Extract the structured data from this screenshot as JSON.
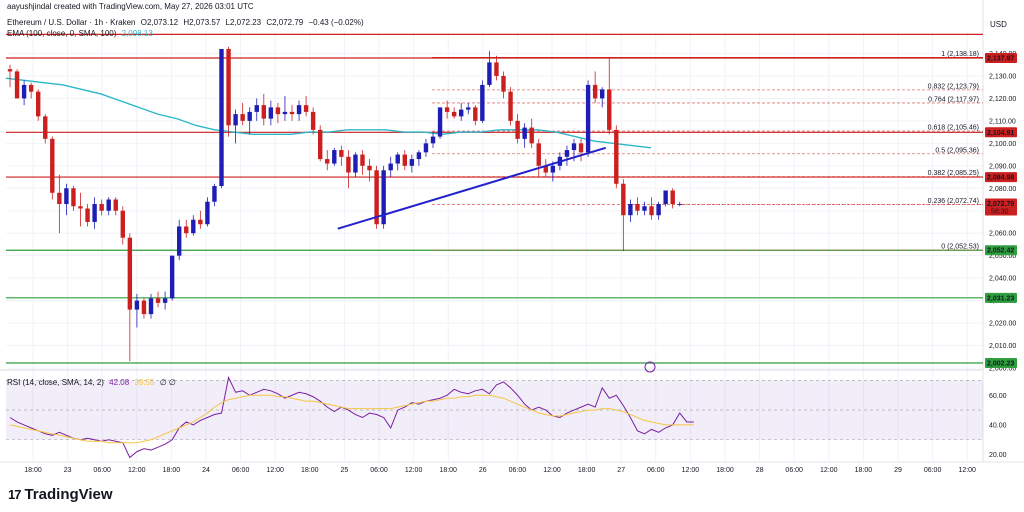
{
  "header": {
    "credit": "aayushjindal created with TradingView.com, May 27, 2026 03:01 UTC",
    "symbol": "Ethereum / U.S. Dollar · 1h · Kraken",
    "o": "O2,073.12",
    "h": "H2,073.57",
    "l": "L2,072.23",
    "c": "C2,072.79",
    "chg": "−0.43 (−0.02%)",
    "ema_label": "EMA (100, close, 0, SMA, 100)",
    "ema_value": "2,098.13",
    "currency": "USD"
  },
  "rsi_header": {
    "label": "RSI (14, close, SMA, 14, 2)",
    "rsi": "42.08",
    "ma": "39.55",
    "extra": "∅ ∅"
  },
  "logo": {
    "text": "TradingView"
  },
  "colors": {
    "up": "#1e1eb4",
    "down": "#cc1f1f",
    "ema": "#2bb7c9",
    "fib": "#d9534f",
    "support": "#2e9e3e",
    "trend": "#2222cc",
    "rsi": "#7b1fa2",
    "rsi_ma": "#f5c542"
  },
  "chart_data": {
    "type": "candlestick",
    "price_range": [
      2000,
      2150
    ],
    "price_ticks": [
      "2,140.00",
      "2,130.00",
      "2,120.00",
      "2,110.00",
      "2,100.00",
      "2,090.00",
      "2,080.00",
      "2,070.00",
      "2,060.00",
      "2,050.00",
      "2,040.00",
      "2,030.00",
      "2,020.00",
      "2,010.00",
      "2,000.00"
    ],
    "time_ticks": [
      "18:00",
      "23",
      "06:00",
      "12:00",
      "18:00",
      "24",
      "06:00",
      "12:00",
      "18:00",
      "25",
      "06:00",
      "12:00",
      "18:00",
      "26",
      "06:00",
      "12:00",
      "18:00",
      "27",
      "06:00",
      "12:00",
      "18:00",
      "28",
      "06:00",
      "12:00",
      "18:00",
      "29",
      "06:00",
      "12:00"
    ],
    "candles": [
      {
        "o": 2133,
        "h": 2135,
        "l": 2125,
        "c": 2132
      },
      {
        "o": 2132,
        "h": 2133,
        "l": 2120,
        "c": 2120
      },
      {
        "o": 2120,
        "h": 2128,
        "l": 2117,
        "c": 2126
      },
      {
        "o": 2126,
        "h": 2127,
        "l": 2120,
        "c": 2123
      },
      {
        "o": 2123,
        "h": 2124,
        "l": 2110,
        "c": 2112
      },
      {
        "o": 2112,
        "h": 2113,
        "l": 2100,
        "c": 2102
      },
      {
        "o": 2102,
        "h": 2103,
        "l": 2075,
        "c": 2078
      },
      {
        "o": 2078,
        "h": 2086,
        "l": 2060,
        "c": 2073
      },
      {
        "o": 2073,
        "h": 2082,
        "l": 2068,
        "c": 2080
      },
      {
        "o": 2080,
        "h": 2081,
        "l": 2070,
        "c": 2072
      },
      {
        "o": 2072,
        "h": 2078,
        "l": 2063,
        "c": 2071
      },
      {
        "o": 2071,
        "h": 2073,
        "l": 2063,
        "c": 2065
      },
      {
        "o": 2065,
        "h": 2076,
        "l": 2062,
        "c": 2073
      },
      {
        "o": 2073,
        "h": 2075,
        "l": 2068,
        "c": 2070
      },
      {
        "o": 2070,
        "h": 2076,
        "l": 2068,
        "c": 2075
      },
      {
        "o": 2075,
        "h": 2076,
        "l": 2068,
        "c": 2070
      },
      {
        "o": 2070,
        "h": 2072,
        "l": 2055,
        "c": 2058
      },
      {
        "o": 2058,
        "h": 2060,
        "l": 2003,
        "c": 2026
      },
      {
        "o": 2026,
        "h": 2033,
        "l": 2018,
        "c": 2030
      },
      {
        "o": 2030,
        "h": 2031,
        "l": 2022,
        "c": 2024
      },
      {
        "o": 2024,
        "h": 2033,
        "l": 2022,
        "c": 2031
      },
      {
        "o": 2031,
        "h": 2034,
        "l": 2027,
        "c": 2029
      },
      {
        "o": 2029,
        "h": 2034,
        "l": 2026,
        "c": 2031
      },
      {
        "o": 2031,
        "h": 2050,
        "l": 2030,
        "c": 2050
      },
      {
        "o": 2050,
        "h": 2066,
        "l": 2048,
        "c": 2063
      },
      {
        "o": 2063,
        "h": 2066,
        "l": 2058,
        "c": 2060
      },
      {
        "o": 2060,
        "h": 2068,
        "l": 2059,
        "c": 2066
      },
      {
        "o": 2066,
        "h": 2070,
        "l": 2062,
        "c": 2064
      },
      {
        "o": 2064,
        "h": 2076,
        "l": 2063,
        "c": 2074
      },
      {
        "o": 2074,
        "h": 2082,
        "l": 2072,
        "c": 2081
      },
      {
        "o": 2081,
        "h": 2142,
        "l": 2080,
        "c": 2142
      },
      {
        "o": 2142,
        "h": 2143,
        "l": 2103,
        "c": 2108
      },
      {
        "o": 2108,
        "h": 2115,
        "l": 2100,
        "c": 2113
      },
      {
        "o": 2113,
        "h": 2118,
        "l": 2108,
        "c": 2110
      },
      {
        "o": 2110,
        "h": 2116,
        "l": 2104,
        "c": 2114
      },
      {
        "o": 2114,
        "h": 2120,
        "l": 2110,
        "c": 2117
      },
      {
        "o": 2117,
        "h": 2122,
        "l": 2108,
        "c": 2111
      },
      {
        "o": 2111,
        "h": 2119,
        "l": 2108,
        "c": 2116
      },
      {
        "o": 2116,
        "h": 2118,
        "l": 2109,
        "c": 2113
      },
      {
        "o": 2113,
        "h": 2121,
        "l": 2110,
        "c": 2114
      },
      {
        "o": 2114,
        "h": 2117,
        "l": 2110,
        "c": 2113
      },
      {
        "o": 2113,
        "h": 2119,
        "l": 2110,
        "c": 2117
      },
      {
        "o": 2117,
        "h": 2121,
        "l": 2112,
        "c": 2114
      },
      {
        "o": 2114,
        "h": 2116,
        "l": 2104,
        "c": 2106
      },
      {
        "o": 2106,
        "h": 2108,
        "l": 2092,
        "c": 2093
      },
      {
        "o": 2093,
        "h": 2097,
        "l": 2088,
        "c": 2091
      },
      {
        "o": 2091,
        "h": 2098,
        "l": 2090,
        "c": 2097
      },
      {
        "o": 2097,
        "h": 2099,
        "l": 2090,
        "c": 2094
      },
      {
        "o": 2094,
        "h": 2097,
        "l": 2080,
        "c": 2087
      },
      {
        "o": 2087,
        "h": 2096,
        "l": 2085,
        "c": 2095
      },
      {
        "o": 2095,
        "h": 2097,
        "l": 2086,
        "c": 2090
      },
      {
        "o": 2090,
        "h": 2093,
        "l": 2083,
        "c": 2088
      },
      {
        "o": 2088,
        "h": 2090,
        "l": 2062,
        "c": 2064
      },
      {
        "o": 2064,
        "h": 2090,
        "l": 2062,
        "c": 2088
      },
      {
        "o": 2088,
        "h": 2094,
        "l": 2085,
        "c": 2091
      },
      {
        "o": 2091,
        "h": 2096,
        "l": 2088,
        "c": 2095
      },
      {
        "o": 2095,
        "h": 2097,
        "l": 2088,
        "c": 2090
      },
      {
        "o": 2090,
        "h": 2095,
        "l": 2087,
        "c": 2093
      },
      {
        "o": 2093,
        "h": 2097,
        "l": 2090,
        "c": 2096
      },
      {
        "o": 2096,
        "h": 2102,
        "l": 2094,
        "c": 2100
      },
      {
        "o": 2100,
        "h": 2105,
        "l": 2098,
        "c": 2103
      },
      {
        "o": 2103,
        "h": 2116,
        "l": 2102,
        "c": 2116
      },
      {
        "o": 2116,
        "h": 2119,
        "l": 2111,
        "c": 2114
      },
      {
        "o": 2114,
        "h": 2116,
        "l": 2111,
        "c": 2112
      },
      {
        "o": 2112,
        "h": 2118,
        "l": 2110,
        "c": 2115
      },
      {
        "o": 2115,
        "h": 2118,
        "l": 2113,
        "c": 2116
      },
      {
        "o": 2116,
        "h": 2117,
        "l": 2108,
        "c": 2110
      },
      {
        "o": 2110,
        "h": 2128,
        "l": 2109,
        "c": 2126
      },
      {
        "o": 2126,
        "h": 2141,
        "l": 2125,
        "c": 2136
      },
      {
        "o": 2136,
        "h": 2139,
        "l": 2128,
        "c": 2130
      },
      {
        "o": 2130,
        "h": 2132,
        "l": 2120,
        "c": 2123
      },
      {
        "o": 2123,
        "h": 2125,
        "l": 2108,
        "c": 2110
      },
      {
        "o": 2110,
        "h": 2113,
        "l": 2100,
        "c": 2102
      },
      {
        "o": 2102,
        "h": 2109,
        "l": 2098,
        "c": 2107
      },
      {
        "o": 2107,
        "h": 2111,
        "l": 2098,
        "c": 2100
      },
      {
        "o": 2100,
        "h": 2102,
        "l": 2085,
        "c": 2090
      },
      {
        "o": 2090,
        "h": 2093,
        "l": 2085,
        "c": 2087
      },
      {
        "o": 2087,
        "h": 2092,
        "l": 2083,
        "c": 2090
      },
      {
        "o": 2090,
        "h": 2096,
        "l": 2088,
        "c": 2094
      },
      {
        "o": 2094,
        "h": 2099,
        "l": 2090,
        "c": 2097
      },
      {
        "o": 2097,
        "h": 2102,
        "l": 2092,
        "c": 2100
      },
      {
        "o": 2100,
        "h": 2102,
        "l": 2092,
        "c": 2096
      },
      {
        "o": 2096,
        "h": 2128,
        "l": 2094,
        "c": 2126
      },
      {
        "o": 2126,
        "h": 2132,
        "l": 2118,
        "c": 2120
      },
      {
        "o": 2120,
        "h": 2125,
        "l": 2116,
        "c": 2124
      },
      {
        "o": 2124,
        "h": 2138,
        "l": 2104,
        "c": 2106
      },
      {
        "o": 2106,
        "h": 2108,
        "l": 2080,
        "c": 2082
      },
      {
        "o": 2082,
        "h": 2084,
        "l": 2052,
        "c": 2068
      },
      {
        "o": 2068,
        "h": 2075,
        "l": 2065,
        "c": 2073
      },
      {
        "o": 2073,
        "h": 2076,
        "l": 2068,
        "c": 2070
      },
      {
        "o": 2070,
        "h": 2074,
        "l": 2068,
        "c": 2072
      },
      {
        "o": 2072,
        "h": 2076,
        "l": 2066,
        "c": 2068
      },
      {
        "o": 2068,
        "h": 2074,
        "l": 2066,
        "c": 2073
      },
      {
        "o": 2073,
        "h": 2079,
        "l": 2072,
        "c": 2079
      },
      {
        "o": 2079,
        "h": 2080,
        "l": 2071,
        "c": 2073
      },
      {
        "o": 2073,
        "h": 2074,
        "l": 2072,
        "c": 2073
      }
    ],
    "ema": [
      2129,
      2128,
      2127,
      2126,
      2124,
      2122,
      2119,
      2116,
      2113,
      2111,
      2108,
      2106,
      2105,
      2104,
      2104,
      2104,
      2105,
      2105,
      2106,
      2106,
      2106,
      2105,
      2105,
      2104,
      2105,
      2105,
      2106,
      2106,
      2106,
      2105,
      2103,
      2101,
      2100,
      2099,
      2098
    ],
    "trendline": {
      "from": [
        2062,
        63
      ],
      "to": [
        2098,
        111
      ]
    },
    "fib_levels": [
      {
        "ratio": "1",
        "price": 2138.18,
        "label": "1 (2,138.18)"
      },
      {
        "ratio": "0.832",
        "price": 2123.79,
        "label": "0.832 (2,123.79)"
      },
      {
        "ratio": "0.764",
        "price": 2117.97,
        "label": "0.764 (2,117.97)"
      },
      {
        "ratio": "0.618",
        "price": 2105.46,
        "label": "0.618 (2,105.46)"
      },
      {
        "ratio": "0.5",
        "price": 2095.36,
        "label": "0.5 (2,095.36)"
      },
      {
        "ratio": "0.382",
        "price": 2085.25,
        "label": "0.382 (2,085.25)"
      },
      {
        "ratio": "0.236",
        "price": 2072.74,
        "label": "0.236 (2,072.74)"
      },
      {
        "ratio": "0",
        "price": 2052.53,
        "label": "0 (2,052.53)"
      }
    ],
    "resistance_lines": [
      {
        "price": 2148.5,
        "label": null
      },
      {
        "price": 2137.97,
        "label": "2,137.97"
      },
      {
        "price": 2104.91,
        "label": "2,104.91"
      },
      {
        "price": 2084.98,
        "label": "2,084.98"
      }
    ],
    "support_lines": [
      {
        "price": 2052.42,
        "label": "2,052.42"
      },
      {
        "price": 2031.23,
        "label": "2,031.23"
      },
      {
        "price": 2002.23,
        "label": "2,002.23"
      }
    ],
    "current_price": {
      "label": "2,072.79",
      "countdown": "58:30",
      "price": 2072.79
    },
    "rsi_range": [
      15,
      75
    ],
    "rsi_ticks": [
      "60.00",
      "40.00",
      "20.00"
    ],
    "rsi_band": [
      30,
      70
    ],
    "rsi": [
      45,
      42,
      40,
      38,
      36,
      34,
      33,
      35,
      33,
      31,
      30,
      31,
      30,
      29,
      30,
      29,
      28,
      18,
      22,
      24,
      23,
      25,
      27,
      30,
      38,
      42,
      40,
      43,
      45,
      47,
      48,
      72,
      62,
      63,
      60,
      62,
      64,
      63,
      61,
      58,
      60,
      62,
      61,
      59,
      56,
      52,
      49,
      52,
      50,
      47,
      45,
      48,
      47,
      45,
      38,
      50,
      52,
      55,
      54,
      56,
      57,
      58,
      60,
      64,
      62,
      61,
      63,
      64,
      61,
      67,
      69,
      65,
      60,
      54,
      50,
      52,
      50,
      46,
      45,
      48,
      50,
      52,
      54,
      52,
      65,
      58,
      60,
      53,
      45,
      36,
      34,
      37,
      35,
      38,
      40,
      48,
      42,
      42
    ],
    "rsi_ma": [
      40,
      39,
      38,
      37,
      36,
      35,
      34,
      33,
      32,
      31,
      30,
      29,
      29,
      29,
      28,
      28,
      28,
      28,
      28,
      29,
      30,
      32,
      34,
      36,
      38,
      40,
      42,
      45,
      48,
      52,
      55,
      57,
      58,
      59,
      60,
      60,
      60,
      60,
      59,
      59,
      58,
      57,
      56,
      56,
      55,
      54,
      53,
      52,
      51,
      51,
      51,
      51,
      51,
      51,
      51,
      52,
      53,
      54,
      55,
      56,
      56,
      57,
      58,
      58,
      59,
      59,
      60,
      60,
      60,
      59,
      58,
      56,
      54,
      52,
      50,
      48,
      47,
      46,
      46,
      47,
      48,
      49,
      50,
      50,
      51,
      51,
      50,
      49,
      47,
      45,
      43,
      42,
      41,
      40,
      40,
      40,
      40,
      40
    ]
  }
}
